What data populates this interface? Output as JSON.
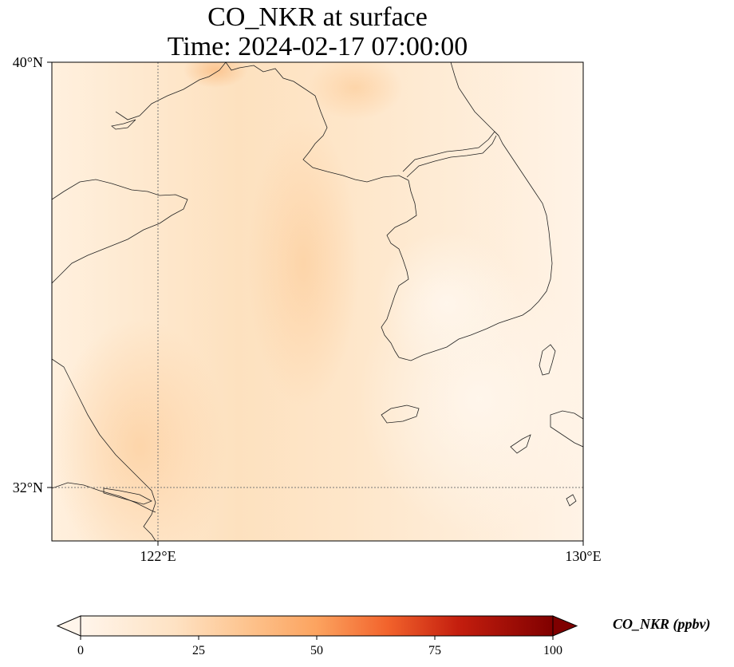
{
  "title": {
    "line1": "CO_NKR at surface",
    "line2": "Time: 2024-02-17 07:00:00"
  },
  "map": {
    "lon_ticks": [
      {
        "value": 122,
        "label": "122°E"
      },
      {
        "value": 130,
        "label": "130°E"
      }
    ],
    "lat_ticks": [
      {
        "value": 40,
        "label": "40°N"
      },
      {
        "value": 32,
        "label": "32°N"
      }
    ],
    "gridlines": [
      {
        "type": "meridian",
        "value": 122
      },
      {
        "type": "parallel",
        "value": 32
      }
    ],
    "coastlines": true
  },
  "colorbar": {
    "label": "CO_NKR (ppbv)",
    "colormap": "Oranges-Reds",
    "range": [
      0,
      100
    ],
    "ticks": [
      {
        "value": 0,
        "label": "0"
      },
      {
        "value": 25,
        "label": "25"
      },
      {
        "value": 50,
        "label": "50"
      },
      {
        "value": 75,
        "label": "75"
      },
      {
        "value": 100,
        "label": "100"
      }
    ],
    "extend": "both",
    "colors": [
      "#fff5eb",
      "#fdd9ae",
      "#fdb16f",
      "#f16913",
      "#b30000",
      "#7f0000"
    ]
  }
}
